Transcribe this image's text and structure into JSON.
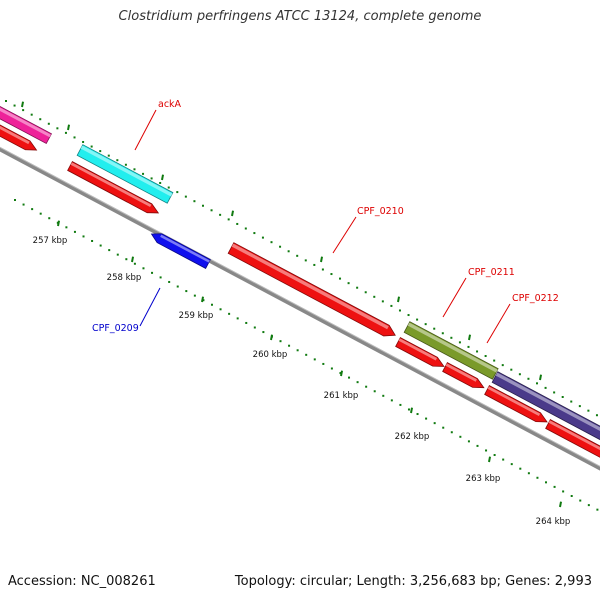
{
  "title": "Clostridium perfringens ATCC 13124, complete genome",
  "footer": {
    "accession": "Accession: NC_008261",
    "topology": "Topology: circular; Length: 3,256,683 bp; Genes: 2,993"
  },
  "kbp_labels": [
    "257 kbp",
    "258 kbp",
    "259 kbp",
    "260 kbp",
    "261 kbp",
    "262 kbp",
    "263 kbp",
    "264 kbp"
  ],
  "gene_labels": [
    {
      "text": "ackA",
      "color": "#dd0000"
    },
    {
      "text": "CPF_0209",
      "color": "#0000cc"
    },
    {
      "text": "CPF_0210",
      "color": "#dd0000"
    },
    {
      "text": "CPF_0211",
      "color": "#dd0000"
    },
    {
      "text": "CPF_0212",
      "color": "#dd0000"
    }
  ],
  "colors": {
    "cds_red": "#ee1111",
    "cds_blue": "#1010ee",
    "cyan": "#22eeee",
    "magenta": "#ee2299",
    "olive": "#7a9a2a",
    "purple": "#4a3a8a",
    "backbone": "#888888",
    "tick_green": "#107a10"
  }
}
